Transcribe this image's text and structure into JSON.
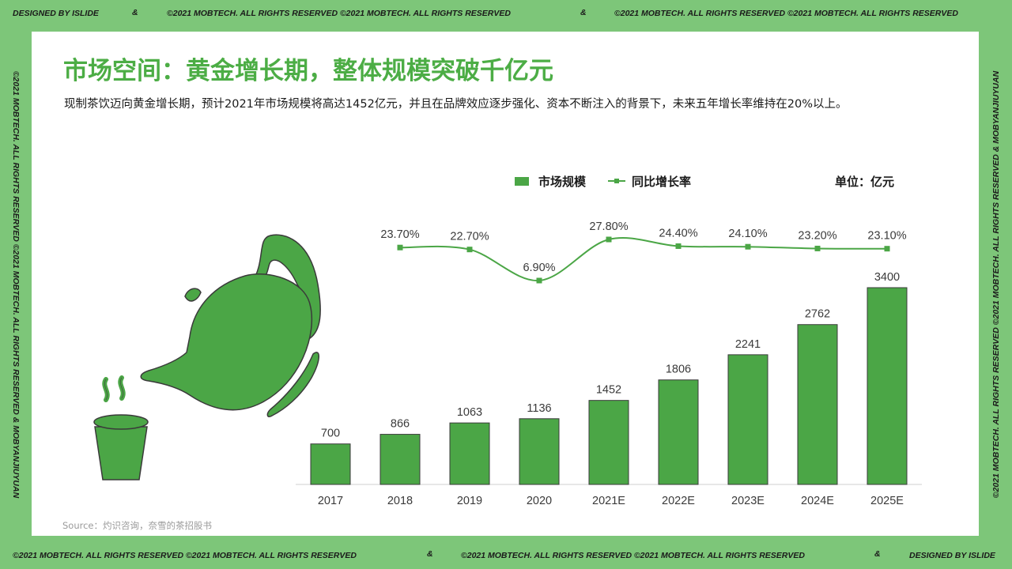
{
  "frame": {
    "top_left": "DESIGNED BY ISLIDE",
    "top_amp_1": "&",
    "top_center": "©2021 MOBTECH. ALL RIGHTS RESERVED  ©2021 MOBTECH. ALL RIGHTS RESERVED",
    "top_amp_2": "&",
    "top_right": "©2021 MOBTECH. ALL RIGHTS RESERVED  ©2021 MOBTECH. ALL RIGHTS RESERVED",
    "bottom_left": "©2021 MOBTECH. ALL RIGHTS RESERVED  ©2021 MOBTECH. ALL RIGHTS RESERVED",
    "bottom_amp_1": "&",
    "bottom_center": "©2021 MOBTECH. ALL RIGHTS RESERVED  ©2021 MOBTECH. ALL RIGHTS RESERVED",
    "bottom_amp_2": "&",
    "bottom_right": "DESIGNED BY ISLIDE",
    "left_side": "©2021 MOBTECH. ALL RIGHTS RESERVED  ©2021 MOBTECH. ALL RIGHTS RESERVED     &     MOBYANJIUYUAN",
    "right_side": "©2021 MOBTECH. ALL RIGHTS RESERVED  ©2021 MOBTECH. ALL RIGHTS RESERVED     &     MOBYANJIUYUAN"
  },
  "title": "市场空间：黄金增长期，整体规模突破千亿元",
  "subtitle": "现制茶饮迈向黄金增长期，预计2021年市场规模将高达1452亿元，并且在品牌效应逐步强化、资本不断注入的背景下，未来五年增长率维持在20%以上。",
  "source": "Source：灼识咨询，奈雪的茶招股书",
  "colors": {
    "accent": "#4ba646",
    "title": "#4cad45",
    "frame": "#7dc679"
  },
  "icons": [
    "teapot-icon",
    "tea-cup-icon"
  ],
  "chart_data": {
    "type": "bar",
    "categories": [
      "2017",
      "2018",
      "2019",
      "2020",
      "2021E",
      "2022E",
      "2023E",
      "2024E",
      "2025E"
    ],
    "series": [
      {
        "name": "市场规模",
        "type": "bar",
        "values": [
          700,
          866,
          1063,
          1136,
          1452,
          1806,
          2241,
          2762,
          3400
        ]
      },
      {
        "name": "同比增长率",
        "type": "line",
        "values": [
          null,
          23.7,
          22.7,
          6.9,
          27.8,
          24.4,
          24.1,
          23.2,
          23.1
        ],
        "labels": [
          "",
          "23.70%",
          "22.70%",
          "6.90%",
          "27.80%",
          "24.40%",
          "24.10%",
          "23.20%",
          "23.10%"
        ]
      }
    ],
    "unit_label": "单位：亿元",
    "legend_position": "top-right",
    "grid": false
  }
}
